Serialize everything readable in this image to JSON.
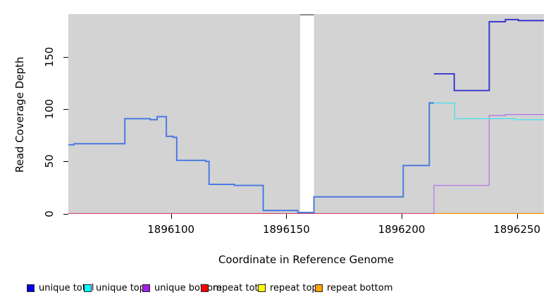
{
  "chart_data": {
    "type": "line",
    "subtype": "step-coverage",
    "title": "",
    "xlabel": "Coordinate in Reference Genome",
    "ylabel": "Read Coverage Depth",
    "xlim": [
      1896055.5,
      1896261.7
    ],
    "ylim": [
      0,
      191
    ],
    "x_ticks": [
      1896100,
      1896150,
      1896200,
      1896250
    ],
    "y_ticks": [
      0,
      50,
      100,
      150
    ],
    "grid": false,
    "panel_background": "#d3d3d3",
    "legend_position": "bottom",
    "gap_mask": {
      "x_start": 1896156,
      "x_end": 1896162,
      "cap_color": "#8c8c8c",
      "mask_color": "#ffffff"
    },
    "series": [
      {
        "name": "repeat-top-line",
        "legend_label": "repeat top",
        "color": "#ffff00",
        "line_width": 1,
        "points": [
          [
            1896055.5,
            0
          ]
        ],
        "x_end": 1896261.7
      },
      {
        "name": "repeat-total-line",
        "legend_label": "repeat total",
        "color": "#d8436b",
        "line_width": 1.2,
        "points": [
          [
            1896055.5,
            0
          ]
        ],
        "x_end": 1896261.7
      },
      {
        "name": "repeat-bottom-line",
        "legend_label": "repeat bottom",
        "color": "#ff9900",
        "line_width": 1.6,
        "points": [
          [
            1896214,
            0
          ]
        ],
        "x_end": 1896261.7
      },
      {
        "name": "unique-bottom-line",
        "legend_label": "unique bottom",
        "color": "#b279e8",
        "line_width": 1.3,
        "points": [
          [
            1896213.8,
            0.5
          ],
          [
            1896214,
            27
          ],
          [
            1896238,
            94
          ],
          [
            1896245,
            95
          ]
        ],
        "x_end": 1896261.7
      },
      {
        "name": "unique-top-line",
        "legend_label": "unique top",
        "color": "#4fe0ee",
        "line_width": 1.4,
        "points": [
          [
            1896212,
            106
          ],
          [
            1896223,
            91
          ],
          [
            1896249,
            90
          ]
        ],
        "x_end": 1896261.7
      },
      {
        "name": "unique-total-overlap-line",
        "legend_label": "unique total",
        "color": "#4a7be0",
        "line_width": 2,
        "points": [
          [
            1896055.5,
            66
          ],
          [
            1896058,
            67
          ],
          [
            1896080,
            91
          ],
          [
            1896091,
            90
          ],
          [
            1896094,
            93
          ],
          [
            1896098,
            74
          ],
          [
            1896101,
            73
          ],
          [
            1896102.5,
            51
          ],
          [
            1896115,
            50
          ],
          [
            1896116.5,
            28
          ],
          [
            1896127.5,
            27
          ],
          [
            1896140,
            3
          ],
          [
            1896155,
            1
          ],
          [
            1896162,
            16
          ],
          [
            1896200.7,
            46
          ],
          [
            1896212,
            106
          ]
        ],
        "x_end": 1896214
      },
      {
        "name": "unique-total-line",
        "legend_label": "unique total",
        "color": "#2b2bd0",
        "line_width": 1.8,
        "points": [
          [
            1896214,
            134
          ],
          [
            1896222.8,
            118
          ],
          [
            1896238,
            184
          ],
          [
            1896245,
            186
          ],
          [
            1896250.6,
            185
          ]
        ],
        "x_end": 1896261.7
      }
    ],
    "legend": [
      {
        "label": "unique total",
        "color": "#0000ee"
      },
      {
        "label": "unique top",
        "color": "#00ffff"
      },
      {
        "label": "unique bottom",
        "color": "#a020f0"
      },
      {
        "label": "repeat total",
        "color": "#ff0000"
      },
      {
        "label": "repeat top",
        "color": "#ffff00"
      },
      {
        "label": "repeat bottom",
        "color": "#ffa500"
      }
    ]
  }
}
